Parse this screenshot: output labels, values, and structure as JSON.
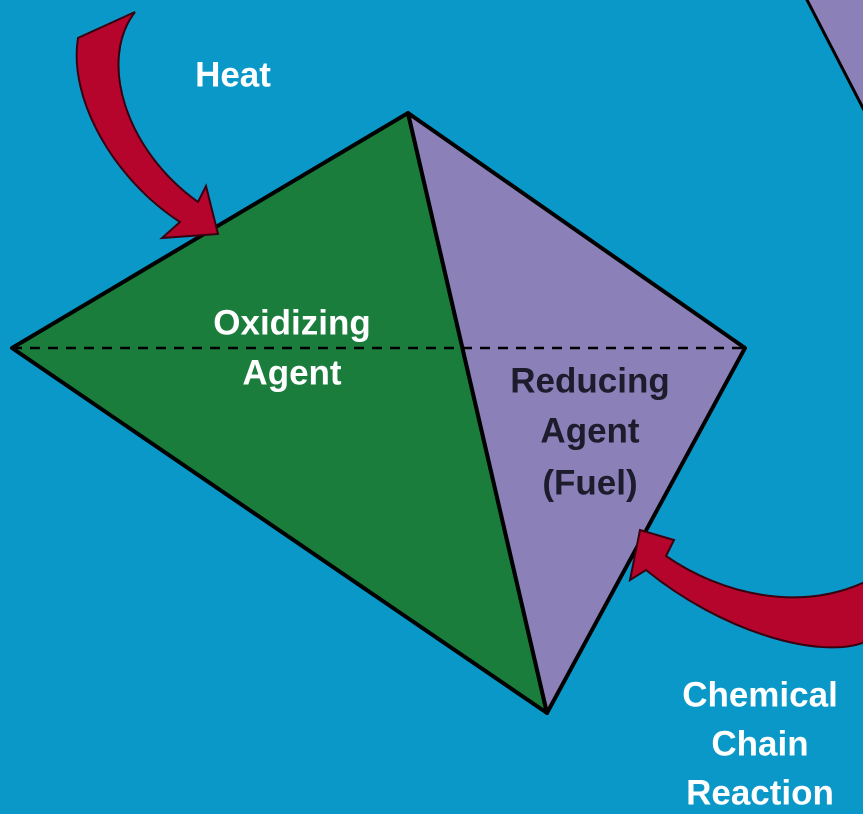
{
  "labels": {
    "heat": [
      "Heat"
    ],
    "oxidizing_agent": [
      "Oxidizing",
      "Agent"
    ],
    "reducing_agent": [
      "Reducing",
      "Agent",
      "(Fuel)"
    ],
    "chain_reaction": [
      "Chemical",
      "Chain",
      "Reaction"
    ]
  }
}
